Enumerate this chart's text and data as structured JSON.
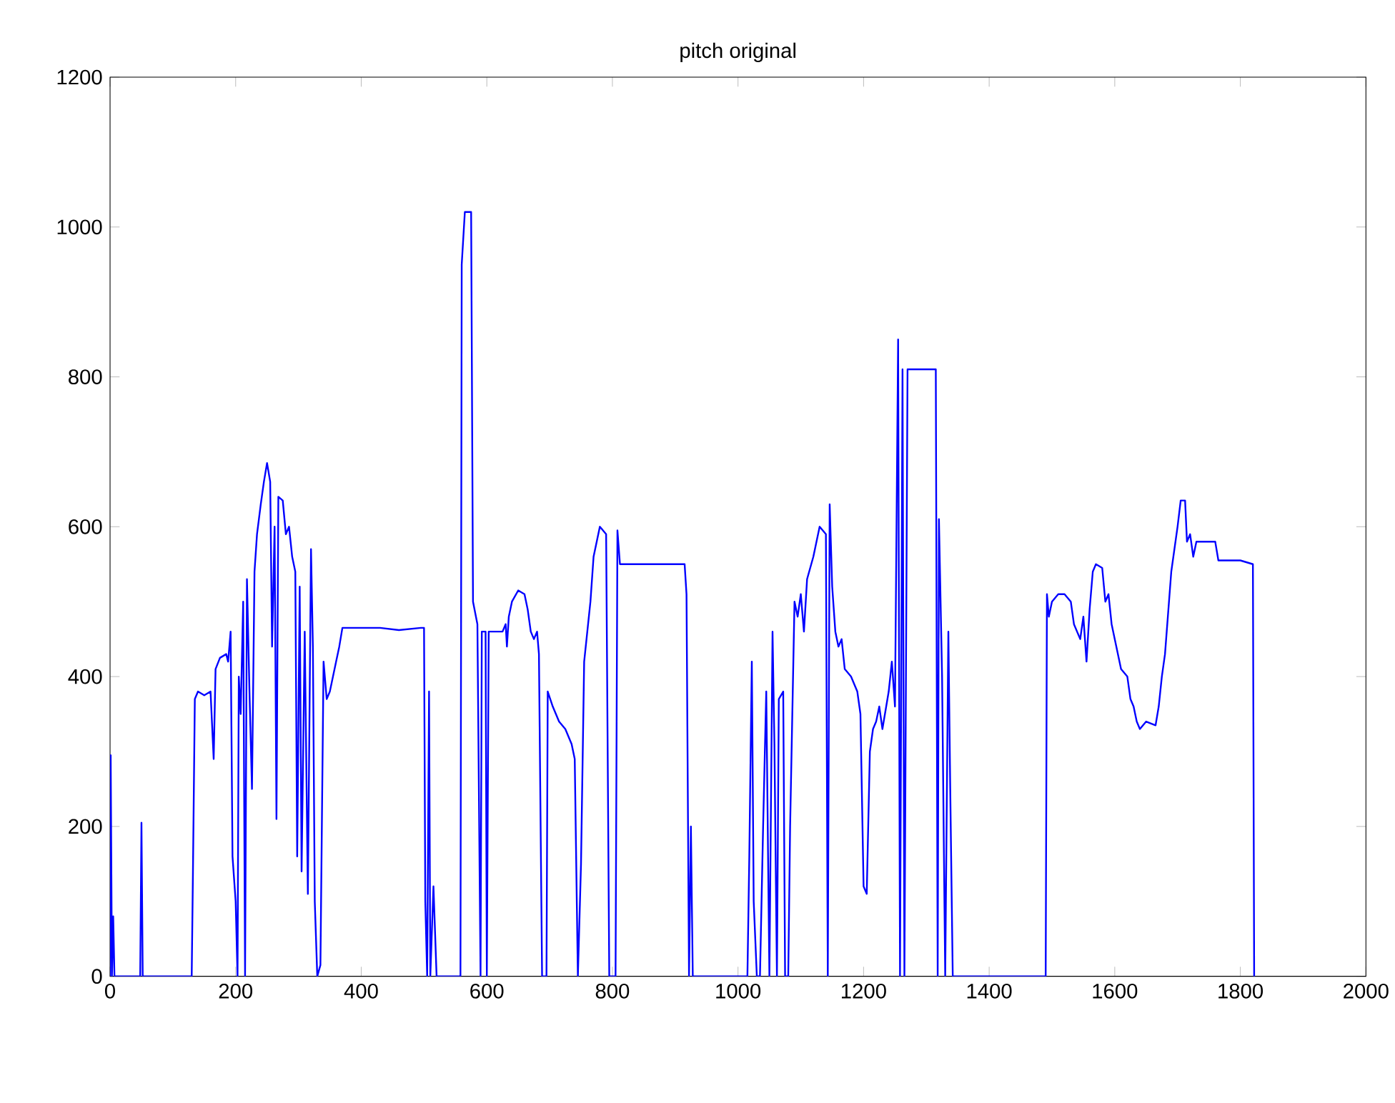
{
  "chart_data": {
    "type": "line",
    "title": "pitch original",
    "color": "#0000ff",
    "xlim": [
      0,
      2000
    ],
    "ylim": [
      0,
      1200
    ],
    "xticks": [
      0,
      200,
      400,
      600,
      800,
      1000,
      1200,
      1400,
      1600,
      1800,
      2000
    ],
    "yticks": [
      0,
      200,
      400,
      600,
      800,
      1000,
      1200
    ],
    "x": [
      0,
      1,
      3,
      5,
      7,
      48,
      50,
      52,
      130,
      132,
      135,
      140,
      150,
      160,
      165,
      168,
      175,
      185,
      188,
      192,
      195,
      200,
      203,
      205,
      208,
      212,
      215,
      218,
      222,
      226,
      230,
      234,
      240,
      245,
      250,
      255,
      258,
      262,
      265,
      268,
      275,
      280,
      285,
      290,
      295,
      298,
      302,
      305,
      310,
      315,
      320,
      323,
      326,
      330,
      335,
      340,
      345,
      350,
      355,
      360,
      365,
      370,
      400,
      430,
      460,
      495,
      500,
      502,
      505,
      508,
      510,
      515,
      520,
      558,
      560,
      565,
      575,
      578,
      585,
      590,
      592,
      598,
      600,
      603,
      620,
      625,
      630,
      632,
      635,
      640,
      650,
      660,
      665,
      670,
      675,
      680,
      683,
      688,
      695,
      697,
      705,
      715,
      725,
      735,
      740,
      745,
      750,
      755,
      765,
      770,
      780,
      790,
      795,
      805,
      808,
      812,
      830,
      880,
      915,
      918,
      922,
      925,
      928,
      1015,
      1018,
      1022,
      1025,
      1030,
      1035,
      1040,
      1045,
      1050,
      1055,
      1058,
      1062,
      1065,
      1072,
      1075,
      1080,
      1083,
      1090,
      1095,
      1100,
      1105,
      1110,
      1120,
      1130,
      1140,
      1143,
      1146,
      1150,
      1155,
      1160,
      1165,
      1170,
      1180,
      1190,
      1195,
      1200,
      1205,
      1210,
      1215,
      1220,
      1225,
      1230,
      1240,
      1245,
      1250,
      1255,
      1258,
      1262,
      1265,
      1270,
      1290,
      1315,
      1318,
      1320,
      1325,
      1330,
      1335,
      1338,
      1342,
      1490,
      1492,
      1495,
      1500,
      1510,
      1520,
      1530,
      1535,
      1545,
      1550,
      1555,
      1560,
      1565,
      1570,
      1580,
      1585,
      1590,
      1595,
      1600,
      1610,
      1620,
      1625,
      1630,
      1635,
      1640,
      1650,
      1665,
      1670,
      1675,
      1680,
      1690,
      1700,
      1705,
      1712,
      1715,
      1720,
      1725,
      1730,
      1740,
      1760,
      1765,
      1780,
      1800,
      1820,
      1822
    ],
    "values": [
      0,
      295,
      0,
      80,
      0,
      0,
      205,
      0,
      0,
      140,
      370,
      380,
      375,
      380,
      290,
      410,
      425,
      430,
      420,
      460,
      160,
      100,
      0,
      400,
      350,
      500,
      0,
      530,
      380,
      250,
      540,
      590,
      630,
      660,
      685,
      660,
      440,
      600,
      210,
      640,
      635,
      590,
      600,
      560,
      540,
      160,
      520,
      140,
      460,
      110,
      570,
      440,
      100,
      0,
      15,
      420,
      370,
      380,
      400,
      420,
      440,
      465,
      465,
      465,
      462,
      465,
      465,
      100,
      0,
      380,
      0,
      120,
      0,
      0,
      950,
      1020,
      1020,
      500,
      470,
      0,
      460,
      460,
      0,
      460,
      460,
      460,
      470,
      440,
      480,
      500,
      515,
      510,
      490,
      460,
      450,
      460,
      430,
      0,
      0,
      380,
      360,
      340,
      330,
      310,
      290,
      0,
      150,
      420,
      500,
      560,
      600,
      590,
      0,
      0,
      595,
      550,
      550,
      550,
      550,
      510,
      0,
      200,
      0,
      0,
      160,
      420,
      100,
      0,
      0,
      200,
      380,
      0,
      460,
      310,
      0,
      370,
      380,
      0,
      0,
      200,
      500,
      480,
      510,
      460,
      530,
      560,
      600,
      590,
      0,
      630,
      520,
      460,
      440,
      450,
      410,
      400,
      380,
      350,
      120,
      110,
      300,
      330,
      340,
      360,
      330,
      380,
      420,
      360,
      850,
      0,
      810,
      0,
      810,
      810,
      810,
      0,
      610,
      400,
      0,
      460,
      250,
      0,
      0,
      510,
      480,
      500,
      510,
      510,
      500,
      470,
      450,
      480,
      420,
      490,
      540,
      550,
      545,
      500,
      510,
      470,
      450,
      410,
      400,
      370,
      360,
      340,
      330,
      340,
      335,
      360,
      400,
      430,
      540,
      600,
      635,
      635,
      580,
      590,
      560,
      580,
      580,
      580,
      555,
      555,
      555,
      550,
      0
    ]
  }
}
